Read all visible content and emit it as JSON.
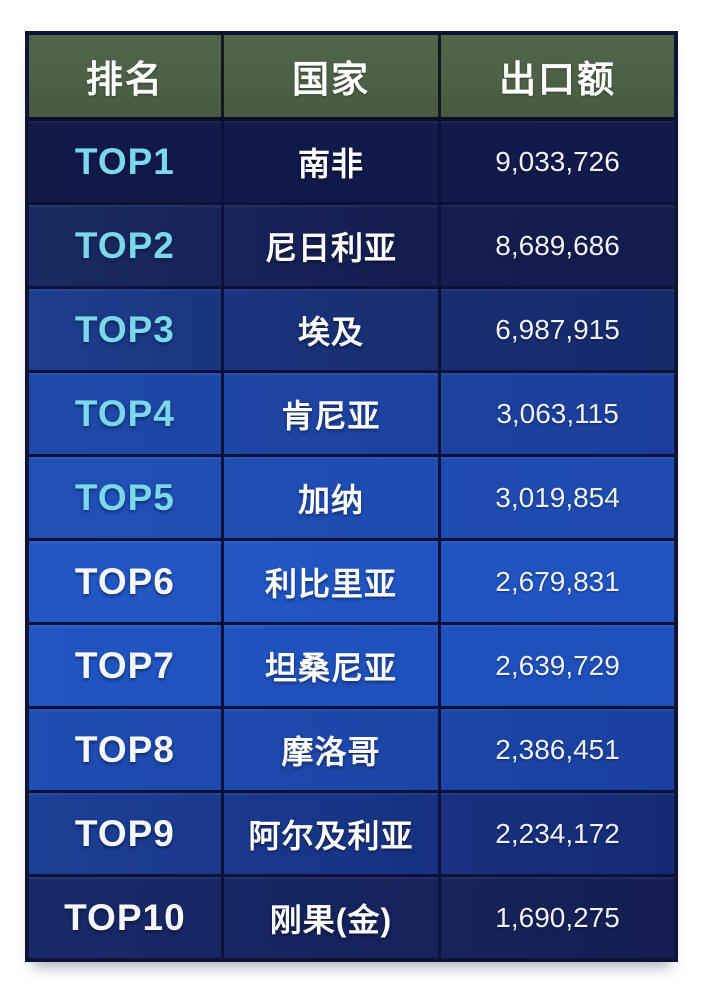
{
  "table": {
    "columns": [
      {
        "key": "rank",
        "label": "排名"
      },
      {
        "key": "country",
        "label": "国家"
      },
      {
        "key": "value",
        "label": "出口额"
      }
    ],
    "rows": [
      {
        "rank": "TOP1",
        "country": "南非",
        "value": "9,033,726",
        "highlight": true
      },
      {
        "rank": "TOP2",
        "country": "尼日利亚",
        "value": "8,689,686",
        "highlight": true
      },
      {
        "rank": "TOP3",
        "country": "埃及",
        "value": "6,987,915",
        "highlight": true
      },
      {
        "rank": "TOP4",
        "country": "肯尼亚",
        "value": "3,063,115",
        "highlight": true
      },
      {
        "rank": "TOP5",
        "country": "加纳",
        "value": "3,019,854",
        "highlight": true
      },
      {
        "rank": "TOP6",
        "country": "利比里亚",
        "value": "2,679,831",
        "highlight": false
      },
      {
        "rank": "TOP7",
        "country": "坦桑尼亚",
        "value": "2,639,729",
        "highlight": false
      },
      {
        "rank": "TOP8",
        "country": "摩洛哥",
        "value": "2,386,451",
        "highlight": false
      },
      {
        "rank": "TOP9",
        "country": "阿尔及利亚",
        "value": "2,234,172",
        "highlight": false
      },
      {
        "rank": "TOP10",
        "country": "刚果(金)",
        "value": "1,690,275",
        "highlight": false
      }
    ],
    "colors": {
      "header_bg": "#4d6146",
      "rank_highlight_cyan": "#7ad8ea",
      "row_blue_bright": "#2257c4",
      "row_navy_dark": "#121947",
      "text": "#ffffff"
    }
  },
  "chart_data": {
    "type": "table",
    "columns": [
      "排名",
      "国家",
      "出口额"
    ],
    "rows": [
      [
        "TOP1",
        "南非",
        9033726
      ],
      [
        "TOP2",
        "尼日利亚",
        8689686
      ],
      [
        "TOP3",
        "埃及",
        6987915
      ],
      [
        "TOP4",
        "肯尼亚",
        3063115
      ],
      [
        "TOP5",
        "加纳",
        3019854
      ],
      [
        "TOP6",
        "利比里亚",
        2679831
      ],
      [
        "TOP7",
        "坦桑尼亚",
        2639729
      ],
      [
        "TOP8",
        "摩洛哥",
        2386451
      ],
      [
        "TOP9",
        "阿尔及利亚",
        2234172
      ],
      [
        "TOP10",
        "刚果(金)",
        1690275
      ]
    ]
  }
}
